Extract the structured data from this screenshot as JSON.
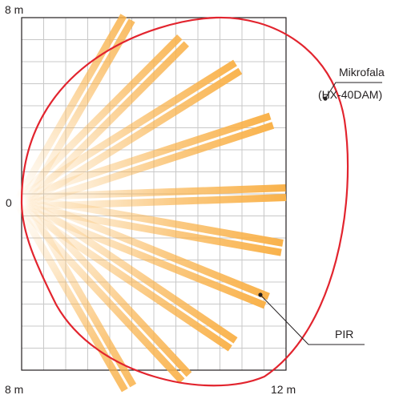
{
  "labels": {
    "top_left": "8 m",
    "origin": "0",
    "bottom_left": "8 m",
    "bottom_right": "12 m",
    "microwave_name": "Mikrofala",
    "microwave_model": "(HX-40DAM)",
    "pir": "PIR"
  },
  "colors": {
    "grid": "#c8c8c8",
    "frame": "#231f20",
    "microwave_outline": "#e2242e",
    "beam": "#f9b24b",
    "leader": "#231f20",
    "text": "#231f20"
  }
}
